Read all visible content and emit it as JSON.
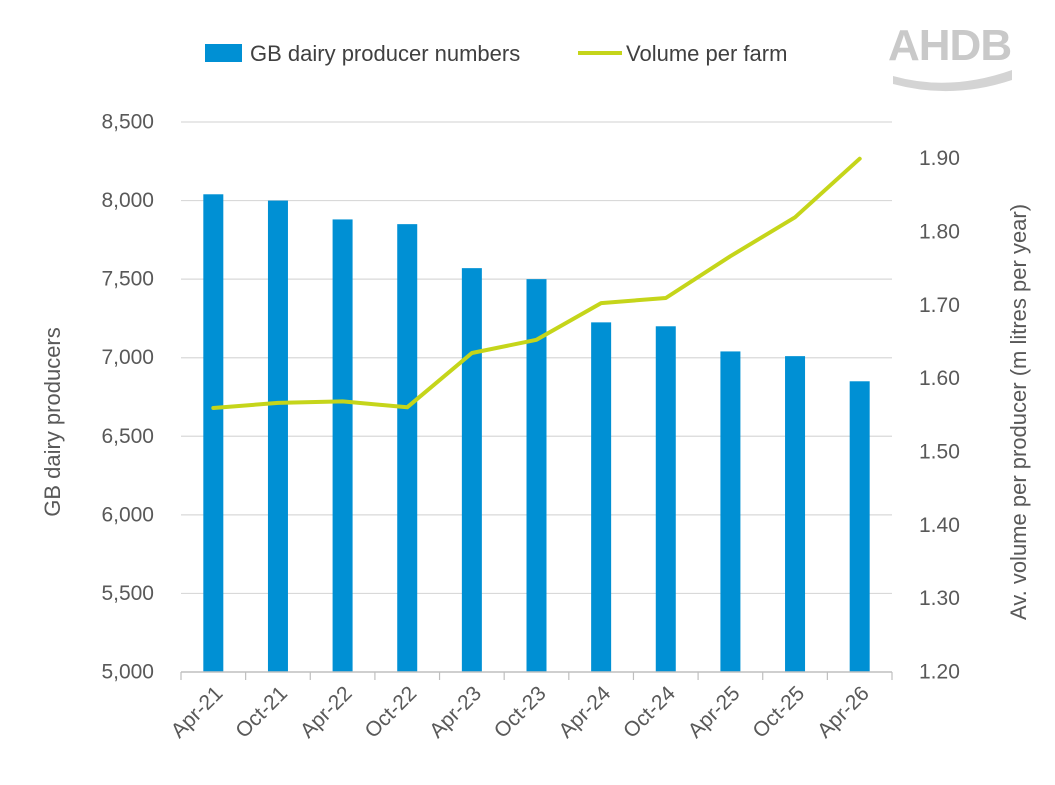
{
  "logo": {
    "text": "AHDB"
  },
  "chart_data": {
    "type": "bar",
    "categories": [
      "Apr-21",
      "Oct-21",
      "Apr-22",
      "Oct-22",
      "Apr-23",
      "Oct-23",
      "Apr-24",
      "Oct-24",
      "Apr-25",
      "Oct-25",
      "Apr-26"
    ],
    "series": [
      {
        "name": "GB dairy producer numbers",
        "type": "bar",
        "axis": "left",
        "color": "#0090d4",
        "values": [
          8040,
          8000,
          7880,
          7850,
          7570,
          7500,
          7225,
          7200,
          7040,
          7010,
          6850
        ]
      },
      {
        "name": "Volume per farm",
        "type": "line",
        "axis": "right",
        "color": "#c5d51a",
        "values": [
          1.56,
          1.567,
          1.569,
          1.561,
          1.635,
          1.653,
          1.703,
          1.71,
          1.767,
          1.82,
          1.9
        ]
      }
    ],
    "y_left": {
      "label": "GB dairy producers",
      "ylim": [
        5000,
        8500
      ],
      "ticks": [
        5000,
        5500,
        6000,
        6500,
        7000,
        7500,
        8000,
        8500
      ],
      "tick_labels": [
        "5,000",
        "5,500",
        "6,000",
        "6,500",
        "7,000",
        "7,500",
        "8,000",
        "8,500"
      ]
    },
    "y_right": {
      "label": "Av. volume per producer (m litres per year)",
      "ylim": [
        1.2,
        1.95
      ],
      "ticks": [
        1.2,
        1.3,
        1.4,
        1.5,
        1.6,
        1.7,
        1.8,
        1.9
      ],
      "tick_labels": [
        "1.20",
        "1.30",
        "1.40",
        "1.50",
        "1.60",
        "1.70",
        "1.80",
        "1.90"
      ]
    },
    "grid": true,
    "legend": "top"
  }
}
